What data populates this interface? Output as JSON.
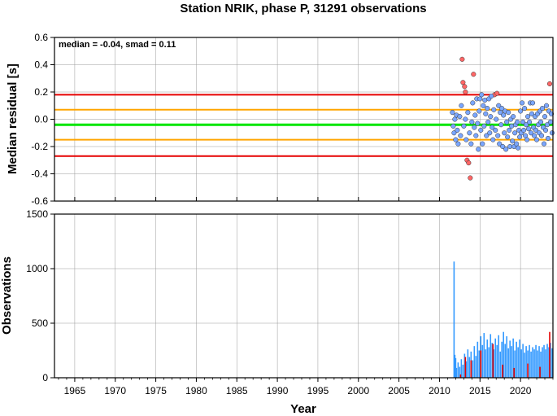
{
  "chart_data": [
    {
      "type": "scatter",
      "title": "Station NRIK, phase P, 31291 observations",
      "annotation": "median = -0.04, smad = 0.11",
      "ylabel": "Median residual [s]",
      "xlim": [
        1962.5,
        2024
      ],
      "ylim": [
        -0.6,
        0.6
      ],
      "yticks": [
        "-0.6",
        "-0.4",
        "-0.2",
        "0.0",
        "0.2",
        "0.4",
        "0.6"
      ],
      "grid": true,
      "reference_lines": [
        {
          "value": -0.04,
          "color": "#00e600"
        },
        {
          "value": 0.07,
          "color": "#ffa500"
        },
        {
          "value": -0.15,
          "color": "#ffa500"
        },
        {
          "value": 0.18,
          "color": "#e60000"
        },
        {
          "value": -0.27,
          "color": "#e60000"
        }
      ],
      "series": [
        {
          "color": "#ff6666",
          "points": [
            [
              2012.8,
              0.44
            ],
            [
              2012.9,
              0.27
            ],
            [
              2013.1,
              0.24
            ],
            [
              2013.4,
              -0.3
            ],
            [
              2013.6,
              -0.32
            ],
            [
              2013.8,
              -0.43
            ],
            [
              2014.2,
              0.33
            ],
            [
              2013.2,
              0.2
            ],
            [
              2016.8,
              0.18
            ],
            [
              2017.1,
              0.19
            ],
            [
              2023.6,
              0.26
            ]
          ]
        },
        {
          "color": "#7aa6ff",
          "points": [
            [
              2011.6,
              0.05
            ],
            [
              2011.7,
              -0.05
            ],
            [
              2011.8,
              -0.1
            ],
            [
              2011.9,
              0.0
            ],
            [
              2012.0,
              -0.15
            ],
            [
              2012.1,
              0.03
            ],
            [
              2012.2,
              -0.08
            ],
            [
              2012.3,
              -0.18
            ],
            [
              2012.5,
              0.02
            ],
            [
              2012.6,
              -0.12
            ],
            [
              2012.7,
              0.1
            ],
            [
              2013.0,
              -0.05
            ],
            [
              2013.2,
              0.0
            ],
            [
              2013.3,
              -0.15
            ],
            [
              2013.5,
              0.05
            ],
            [
              2013.7,
              -0.1
            ],
            [
              2013.9,
              -0.18
            ],
            [
              2014.0,
              -0.02
            ],
            [
              2014.1,
              0.12
            ],
            [
              2014.3,
              -0.06
            ],
            [
              2014.4,
              0.03
            ],
            [
              2014.5,
              -0.12
            ],
            [
              2014.6,
              0.15
            ],
            [
              2014.7,
              -0.03
            ],
            [
              2014.8,
              -0.22
            ],
            [
              2014.9,
              0.06
            ],
            [
              2015.0,
              0.15
            ],
            [
              2015.1,
              -0.08
            ],
            [
              2015.2,
              0.18
            ],
            [
              2015.3,
              -0.18
            ],
            [
              2015.4,
              0.1
            ],
            [
              2015.5,
              -0.05
            ],
            [
              2015.6,
              0.14
            ],
            [
              2015.7,
              0.04
            ],
            [
              2015.8,
              -0.12
            ],
            [
              2015.9,
              0.08
            ],
            [
              2016.0,
              -0.02
            ],
            [
              2016.1,
              0.15
            ],
            [
              2016.2,
              -0.1
            ],
            [
              2016.3,
              0.02
            ],
            [
              2016.4,
              0.17
            ],
            [
              2016.5,
              -0.06
            ],
            [
              2016.6,
              -0.15
            ],
            [
              2016.7,
              0.07
            ],
            [
              2016.9,
              -0.08
            ],
            [
              2017.0,
              0.0
            ],
            [
              2017.2,
              -0.12
            ],
            [
              2017.3,
              0.1
            ],
            [
              2017.4,
              -0.18
            ],
            [
              2017.5,
              0.05
            ],
            [
              2017.6,
              -0.04
            ],
            [
              2017.7,
              0.08
            ],
            [
              2017.8,
              -0.2
            ],
            [
              2017.9,
              0.03
            ],
            [
              2018.0,
              -0.1
            ],
            [
              2018.1,
              0.06
            ],
            [
              2018.2,
              -0.22
            ],
            [
              2018.3,
              -0.02
            ],
            [
              2018.4,
              -0.13
            ],
            [
              2018.5,
              0.05
            ],
            [
              2018.6,
              -0.08
            ],
            [
              2018.7,
              -0.2
            ],
            [
              2018.8,
              0.0
            ],
            [
              2018.9,
              -0.05
            ],
            [
              2019.0,
              -0.16
            ],
            [
              2019.1,
              0.02
            ],
            [
              2019.2,
              -0.2
            ],
            [
              2019.3,
              -0.1
            ],
            [
              2019.4,
              -0.04
            ],
            [
              2019.5,
              -0.18
            ],
            [
              2019.6,
              -0.02
            ],
            [
              2019.7,
              -0.21
            ],
            [
              2019.8,
              -0.08
            ],
            [
              2019.9,
              -0.13
            ],
            [
              2020.0,
              0.06
            ],
            [
              2020.1,
              -0.1
            ],
            [
              2020.2,
              0.12
            ],
            [
              2020.3,
              -0.02
            ],
            [
              2020.4,
              -0.08
            ],
            [
              2020.5,
              0.08
            ],
            [
              2020.6,
              -0.12
            ],
            [
              2020.7,
              -0.04
            ],
            [
              2020.8,
              -0.15
            ],
            [
              2020.9,
              0.02
            ],
            [
              2021.0,
              -0.07
            ],
            [
              2021.1,
              -0.02
            ],
            [
              2021.2,
              0.12
            ],
            [
              2021.3,
              -0.1
            ],
            [
              2021.4,
              0.04
            ],
            [
              2021.5,
              0.12
            ],
            [
              2021.6,
              -0.06
            ],
            [
              2021.7,
              -0.12
            ],
            [
              2021.8,
              0.02
            ],
            [
              2021.9,
              -0.08
            ],
            [
              2022.0,
              -0.15
            ],
            [
              2022.1,
              0.04
            ],
            [
              2022.2,
              -0.04
            ],
            [
              2022.3,
              -0.1
            ],
            [
              2022.4,
              0.06
            ],
            [
              2022.5,
              -0.02
            ],
            [
              2022.6,
              -0.12
            ],
            [
              2022.7,
              0.08
            ],
            [
              2022.8,
              -0.06
            ],
            [
              2022.9,
              -0.18
            ],
            [
              2023.0,
              0.02
            ],
            [
              2023.1,
              -0.08
            ],
            [
              2023.2,
              0.1
            ],
            [
              2023.3,
              -0.04
            ],
            [
              2023.4,
              -0.14
            ],
            [
              2023.5,
              0.06
            ],
            [
              2023.7,
              -0.02
            ],
            [
              2023.8,
              0.04
            ],
            [
              2023.9,
              -0.1
            ]
          ]
        }
      ]
    },
    {
      "type": "bar",
      "ylabel": "Observations",
      "xlabel": "Year",
      "xlim": [
        1962.5,
        2024
      ],
      "ylim": [
        0,
        1500
      ],
      "xticks": [
        "1965",
        "1970",
        "1975",
        "1980",
        "1985",
        "1990",
        "1995",
        "2000",
        "2005",
        "2010",
        "2015",
        "2020"
      ],
      "yticks": [
        "0",
        "500",
        "1000",
        "1500"
      ],
      "grid": true,
      "series": [
        {
          "color": "#3399ff",
          "values": [
            [
              2011.8,
              1065
            ],
            [
              2011.9,
              210
            ],
            [
              2012.0,
              180
            ],
            [
              2012.1,
              90
            ],
            [
              2012.3,
              140
            ],
            [
              2012.5,
              100
            ],
            [
              2012.7,
              170
            ],
            [
              2012.9,
              120
            ],
            [
              2013.1,
              220
            ],
            [
              2013.3,
              150
            ],
            [
              2013.5,
              260
            ],
            [
              2013.7,
              190
            ],
            [
              2013.9,
              240
            ],
            [
              2014.1,
              160
            ],
            [
              2014.3,
              290
            ],
            [
              2014.5,
              200
            ],
            [
              2014.7,
              330
            ],
            [
              2014.9,
              250
            ],
            [
              2015.1,
              380
            ],
            [
              2015.3,
              300
            ],
            [
              2015.5,
              410
            ],
            [
              2015.7,
              260
            ],
            [
              2015.9,
              350
            ],
            [
              2016.1,
              280
            ],
            [
              2016.3,
              400
            ],
            [
              2016.5,
              320
            ],
            [
              2016.7,
              260
            ],
            [
              2016.9,
              360
            ],
            [
              2017.1,
              300
            ],
            [
              2017.3,
              390
            ],
            [
              2017.5,
              240
            ],
            [
              2017.7,
              330
            ],
            [
              2017.9,
              420
            ],
            [
              2018.1,
              310
            ],
            [
              2018.3,
              380
            ],
            [
              2018.5,
              270
            ],
            [
              2018.7,
              340
            ],
            [
              2018.9,
              290
            ],
            [
              2019.1,
              360
            ],
            [
              2019.3,
              250
            ],
            [
              2019.5,
              330
            ],
            [
              2019.7,
              280
            ],
            [
              2019.9,
              350
            ],
            [
              2020.1,
              260
            ],
            [
              2020.3,
              310
            ],
            [
              2020.5,
              230
            ],
            [
              2020.7,
              290
            ],
            [
              2020.9,
              250
            ],
            [
              2021.1,
              300
            ],
            [
              2021.3,
              240
            ],
            [
              2021.5,
              280
            ],
            [
              2021.7,
              260
            ],
            [
              2021.9,
              300
            ],
            [
              2022.1,
              250
            ],
            [
              2022.3,
              290
            ],
            [
              2022.5,
              240
            ],
            [
              2022.7,
              280
            ],
            [
              2022.9,
              300
            ],
            [
              2023.1,
              260
            ],
            [
              2023.3,
              310
            ],
            [
              2023.5,
              280
            ],
            [
              2023.7,
              320
            ],
            [
              2023.9,
              270
            ]
          ]
        },
        {
          "color": "#e60000",
          "values": [
            [
              2012.6,
              30
            ],
            [
              2013.2,
              190
            ],
            [
              2013.9,
              160
            ],
            [
              2015.1,
              250
            ],
            [
              2016.6,
              310
            ],
            [
              2017.8,
              120
            ],
            [
              2019.2,
              90
            ],
            [
              2020.9,
              130
            ],
            [
              2022.4,
              100
            ],
            [
              2023.6,
              420
            ]
          ]
        }
      ]
    }
  ]
}
